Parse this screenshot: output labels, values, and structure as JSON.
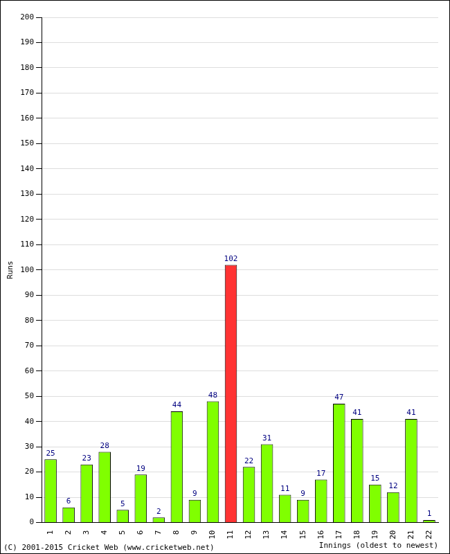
{
  "chart_data": {
    "type": "bar",
    "x_label": "Innings (oldest to newest)",
    "y_label": "Runs",
    "annotations": [
      "(C) 2001-2015 Cricket Web (www.cricketweb.net)"
    ],
    "categories": [
      "1",
      "2",
      "3",
      "4",
      "5",
      "6",
      "7",
      "8",
      "9",
      "10",
      "11",
      "12",
      "13",
      "14",
      "15",
      "16",
      "17",
      "18",
      "19",
      "20",
      "21",
      "22"
    ],
    "values": [
      25,
      6,
      23,
      28,
      5,
      19,
      2,
      44,
      9,
      48,
      102,
      22,
      31,
      11,
      9,
      17,
      47,
      41,
      15,
      12,
      41,
      1
    ],
    "colors": [
      "#80ff00",
      "#80ff00",
      "#80ff00",
      "#80ff00",
      "#80ff00",
      "#80ff00",
      "#80ff00",
      "#80ff00",
      "#80ff00",
      "#80ff00",
      "#ff3333",
      "#80ff00",
      "#80ff00",
      "#80ff00",
      "#80ff00",
      "#80ff00",
      "#80ff00",
      "#80ff00",
      "#80ff00",
      "#80ff00",
      "#80ff00",
      "#80ff00"
    ],
    "ylim": [
      0,
      200
    ],
    "yticks": [
      0,
      10,
      20,
      30,
      40,
      50,
      60,
      70,
      80,
      90,
      100,
      110,
      120,
      130,
      140,
      150,
      160,
      170,
      180,
      190,
      200
    ],
    "grid": true,
    "data_labels": true
  }
}
